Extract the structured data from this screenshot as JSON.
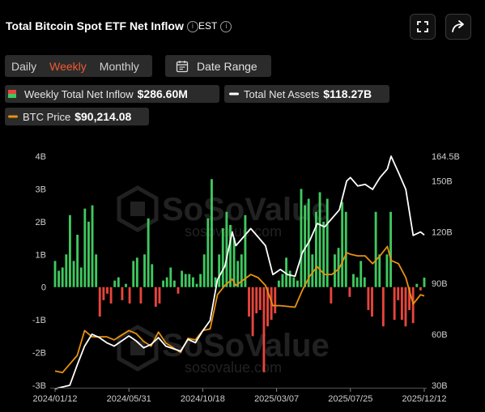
{
  "header": {
    "title": "Total Bitcoin Spot ETF Net Inflow",
    "timezone": "EST",
    "expand_icon": "expand-icon",
    "share_icon": "share-icon"
  },
  "tabs": [
    {
      "label": "Daily",
      "active": false
    },
    {
      "label": "Weekly",
      "active": true
    },
    {
      "label": "Monthly",
      "active": false
    }
  ],
  "date_range": {
    "label": "Date Range",
    "icon": "calendar-icon"
  },
  "legend": {
    "inflow": {
      "label": "Weekly Total Net Inflow",
      "value": "$286.60M"
    },
    "assets": {
      "label": "Total Net Assets",
      "value": "$118.27B"
    },
    "btc": {
      "label": "BTC Price",
      "value": "$90,214.08"
    }
  },
  "watermark": {
    "brand": "SoSoValue",
    "url": "sosovalue.com"
  },
  "colors": {
    "positive": "#3fc85f",
    "negative": "#e8453c",
    "assets_line": "#ffffff",
    "btc_line": "#e8920f",
    "active_tab": "#f05a33"
  },
  "chart_data": {
    "type": "bar",
    "x_tick_labels": [
      "2024/01/12",
      "2024/05/31",
      "2024/10/18",
      "2025/03/07",
      "2025/07/25",
      "2025/12/12"
    ],
    "y_left": {
      "ticks": [
        "4B",
        "3B",
        "2B",
        "1B",
        "0",
        "-1B",
        "-2B",
        "-3B"
      ],
      "range_billions": [
        -3,
        4
      ]
    },
    "y_right": {
      "ticks": [
        "164.5B",
        "150B",
        "120B",
        "90B",
        "60B",
        "30B"
      ],
      "range_billions": [
        30,
        164.5
      ]
    },
    "x_range": [
      "2024/01/12",
      "2025/12/12"
    ],
    "grid": false,
    "series": [
      {
        "name": "Weekly Total Net Inflow",
        "kind": "bar",
        "unit": "billion USD",
        "values": [
          0.8,
          0.5,
          0.6,
          1.0,
          2.2,
          0.8,
          1.6,
          0.6,
          2.4,
          2.0,
          2.5,
          1.0,
          -0.9,
          -0.4,
          -0.2,
          -0.5,
          0.2,
          0.3,
          -0.4,
          0.1,
          -0.5,
          0.8,
          0.9,
          -0.5,
          1.0,
          2.1,
          0.7,
          -0.6,
          -0.5,
          0.2,
          0.3,
          0.6,
          0.2,
          -0.2,
          0.5,
          0.4,
          0.4,
          0.3,
          0.1,
          0.4,
          1.0,
          2.1,
          3.3,
          0.3,
          1.0,
          1.8,
          2.3,
          1.9,
          1.5,
          0.8,
          1.0,
          2.2,
          -0.9,
          -1.5,
          -0.8,
          -0.7,
          -2.6,
          -1.2,
          -1.0,
          -0.8,
          0.2,
          0.4,
          0.9,
          0.5,
          0.3,
          0.2,
          3.0,
          2.5,
          2.7,
          1.0,
          2.3,
          2.9,
          2.0,
          2.7,
          -0.5,
          1.0,
          1.2,
          2.6,
          2.3,
          -0.3,
          0.4,
          0.3,
          0.8,
          0.3,
          -0.7,
          -0.9,
          2.3,
          1.0,
          -1.2,
          1.0,
          2.3,
          -1.0,
          -0.4,
          -1.0,
          -1.2,
          -0.7,
          -1.1,
          0.1,
          -0.1,
          0.29
        ]
      },
      {
        "name": "Total Net Assets",
        "kind": "line",
        "axis": "right",
        "unit": "billion USD",
        "points": [
          [
            "2024/01/12",
            28
          ],
          [
            "2024/02/09",
            30
          ],
          [
            "2024/02/23",
            42
          ],
          [
            "2024/03/08",
            53
          ],
          [
            "2024/03/22",
            60
          ],
          [
            "2024/04/05",
            58
          ],
          [
            "2024/04/19",
            55
          ],
          [
            "2024/05/03",
            53
          ],
          [
            "2024/05/31",
            59
          ],
          [
            "2024/06/14",
            56
          ],
          [
            "2024/06/28",
            52
          ],
          [
            "2024/07/12",
            54
          ],
          [
            "2024/07/26",
            58
          ],
          [
            "2024/08/09",
            53
          ],
          [
            "2024/09/06",
            50
          ],
          [
            "2024/09/20",
            57
          ],
          [
            "2024/10/04",
            55
          ],
          [
            "2024/10/18",
            62
          ],
          [
            "2024/11/01",
            68
          ],
          [
            "2024/11/15",
            92
          ],
          [
            "2024/11/29",
            100
          ],
          [
            "2024/12/13",
            120
          ],
          [
            "2024/12/20",
            112
          ],
          [
            "2025/01/03",
            117
          ],
          [
            "2025/01/17",
            122
          ],
          [
            "2025/01/31",
            117
          ],
          [
            "2025/02/14",
            112
          ],
          [
            "2025/02/28",
            95
          ],
          [
            "2025/03/14",
            98
          ],
          [
            "2025/03/28",
            95
          ],
          [
            "2025/04/11",
            94
          ],
          [
            "2025/04/25",
            108
          ],
          [
            "2025/05/09",
            115
          ],
          [
            "2025/05/23",
            125
          ],
          [
            "2025/06/06",
            123
          ],
          [
            "2025/06/20",
            128
          ],
          [
            "2025/07/04",
            133
          ],
          [
            "2025/07/18",
            150
          ],
          [
            "2025/07/25",
            152
          ],
          [
            "2025/08/08",
            147
          ],
          [
            "2025/08/22",
            148
          ],
          [
            "2025/09/05",
            145
          ],
          [
            "2025/09/19",
            152
          ],
          [
            "2025/10/03",
            157
          ],
          [
            "2025/10/10",
            164.5
          ],
          [
            "2025/10/24",
            155
          ],
          [
            "2025/11/07",
            145
          ],
          [
            "2025/11/21",
            118
          ],
          [
            "2025/12/05",
            120
          ],
          [
            "2025/12/12",
            118.27
          ]
        ]
      },
      {
        "name": "BTC Price",
        "kind": "line",
        "axis": "right",
        "unit": "USD",
        "points": [
          [
            "2024/01/12",
            42000
          ],
          [
            "2024/01/26",
            41000
          ],
          [
            "2024/02/23",
            52000
          ],
          [
            "2024/03/08",
            68000
          ],
          [
            "2024/03/22",
            64000
          ],
          [
            "2024/04/19",
            64000
          ],
          [
            "2024/05/03",
            62000
          ],
          [
            "2024/05/31",
            68000
          ],
          [
            "2024/06/14",
            66000
          ],
          [
            "2024/06/28",
            61000
          ],
          [
            "2024/07/12",
            58000
          ],
          [
            "2024/07/26",
            67000
          ],
          [
            "2024/08/09",
            60000
          ],
          [
            "2024/09/06",
            54000
          ],
          [
            "2024/09/20",
            63000
          ],
          [
            "2024/10/04",
            62000
          ],
          [
            "2024/10/18",
            68000
          ],
          [
            "2024/11/01",
            69000
          ],
          [
            "2024/11/15",
            91000
          ],
          [
            "2024/11/29",
            97000
          ],
          [
            "2024/12/13",
            101000
          ],
          [
            "2024/12/20",
            97000
          ],
          [
            "2025/01/17",
            104000
          ],
          [
            "2025/01/31",
            102000
          ],
          [
            "2025/02/14",
            97000
          ],
          [
            "2025/02/28",
            84000
          ],
          [
            "2025/03/14",
            84000
          ],
          [
            "2025/04/11",
            83000
          ],
          [
            "2025/04/25",
            94000
          ],
          [
            "2025/05/09",
            103000
          ],
          [
            "2025/05/23",
            109000
          ],
          [
            "2025/06/06",
            104000
          ],
          [
            "2025/06/20",
            104000
          ],
          [
            "2025/07/04",
            108000
          ],
          [
            "2025/07/18",
            118000
          ],
          [
            "2025/07/25",
            117000
          ],
          [
            "2025/08/08",
            116000
          ],
          [
            "2025/08/22",
            116000
          ],
          [
            "2025/09/05",
            111000
          ],
          [
            "2025/09/19",
            116000
          ],
          [
            "2025/10/03",
            122000
          ],
          [
            "2025/10/10",
            113000
          ],
          [
            "2025/10/24",
            111000
          ],
          [
            "2025/11/07",
            102000
          ],
          [
            "2025/11/21",
            85000
          ],
          [
            "2025/12/05",
            91000
          ],
          [
            "2025/12/12",
            90214.08
          ]
        ]
      }
    ]
  }
}
